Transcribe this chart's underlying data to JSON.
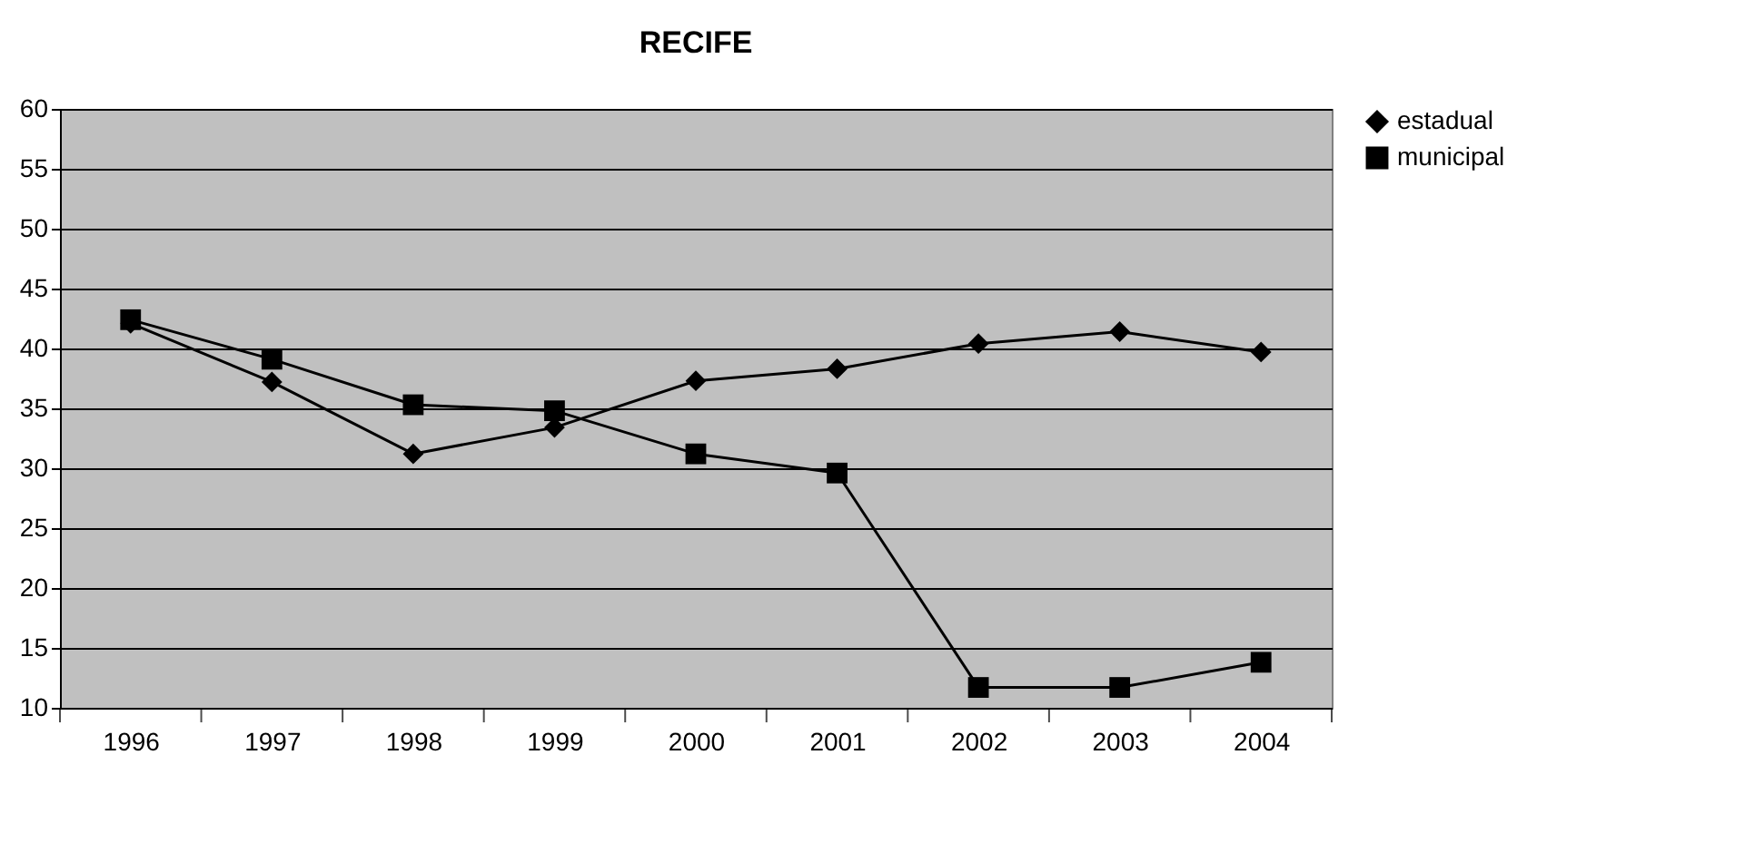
{
  "chart_data": {
    "type": "line",
    "title": "RECIFE",
    "categories": [
      "1996",
      "1997",
      "1998",
      "1999",
      "2000",
      "2001",
      "2002",
      "2003",
      "2004"
    ],
    "series": [
      {
        "name": "estadual",
        "color": "#000000",
        "marker": "diamond",
        "values": [
          42.1,
          37.2,
          31.2,
          33.4,
          37.3,
          38.3,
          40.4,
          41.4,
          39.7
        ]
      },
      {
        "name": "municipal",
        "color": "#000000",
        "marker": "square",
        "values": [
          42.4,
          39.1,
          35.3,
          34.8,
          31.2,
          29.6,
          11.7,
          11.7,
          13.8
        ]
      }
    ],
    "ylim": [
      10,
      60
    ],
    "yticks": [
      10,
      15,
      20,
      25,
      30,
      35,
      40,
      45,
      50,
      55,
      60
    ],
    "grid": "y",
    "legend": "right",
    "line_style": "solid"
  }
}
